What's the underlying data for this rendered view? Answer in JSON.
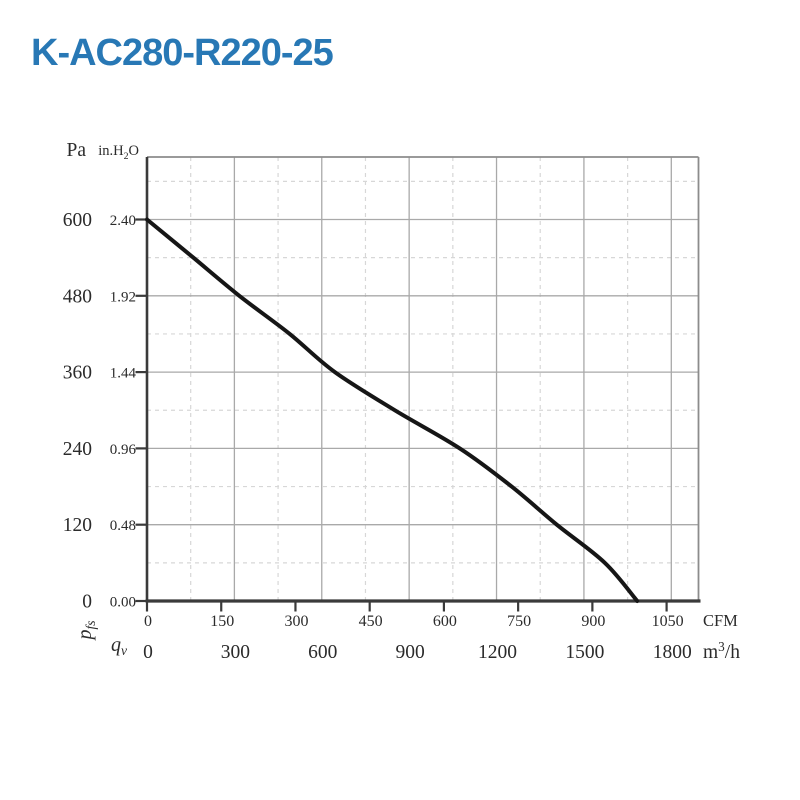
{
  "header": {
    "title": "K-AC280-R220-25"
  },
  "colors": {
    "title": "#2878b5",
    "text": "#2b2b2b",
    "curve": "#161616",
    "axis": "#3a3a3a",
    "grid_major": "#a9a9a9",
    "grid_minor": "#d7d7d7",
    "box_border": "#8c8c8c",
    "background": "#ffffff"
  },
  "chart_data": {
    "type": "line",
    "title": "K-AC280-R220-25",
    "grid": {
      "major_style": "solid",
      "minor_style": "dashed",
      "minor_x_step_m3h": 150,
      "minor_y_step_pa": 60
    },
    "x_axis": {
      "quantity_parts": {
        "pre": "q",
        "sub": "v"
      },
      "quantity": "qv",
      "scales": [
        {
          "unit": "CFM",
          "ticks": [
            0,
            150,
            300,
            450,
            600,
            750,
            900,
            1050
          ]
        },
        {
          "unit": "m3/h",
          "unit_parts": {
            "pre": "m",
            "sup": "3",
            "post": "/h"
          },
          "ticks": [
            0,
            300,
            600,
            900,
            1200,
            1500,
            1800
          ]
        }
      ],
      "range_m3h": [
        0,
        1893
      ]
    },
    "y_axis": {
      "quantity_parts": {
        "pre": "p",
        "sub": "fs"
      },
      "quantity": "pfs",
      "scales": [
        {
          "unit": "Pa",
          "ticks": [
            0,
            120,
            240,
            360,
            480,
            600
          ]
        },
        {
          "unit": "in.H2O",
          "unit_parts": {
            "pre": "in.H",
            "sub": "2",
            "post": "O"
          },
          "tick_labels": [
            "0.00",
            "0.48",
            "0.96",
            "1.44",
            "1.92",
            "2.40"
          ]
        }
      ],
      "range_pa": [
        0,
        698
      ]
    },
    "series": [
      {
        "name": "fan-static-pressure-vs-flow",
        "x_unit": "m3/h",
        "y_unit": "Pa",
        "points": [
          [
            0,
            600
          ],
          [
            159,
            540
          ],
          [
            317,
            480
          ],
          [
            490,
            420
          ],
          [
            645,
            360
          ],
          [
            851,
            300
          ],
          [
            1074,
            240
          ],
          [
            1252,
            180
          ],
          [
            1407,
            120
          ],
          [
            1572,
            60
          ],
          [
            1683,
            0
          ]
        ]
      }
    ]
  }
}
